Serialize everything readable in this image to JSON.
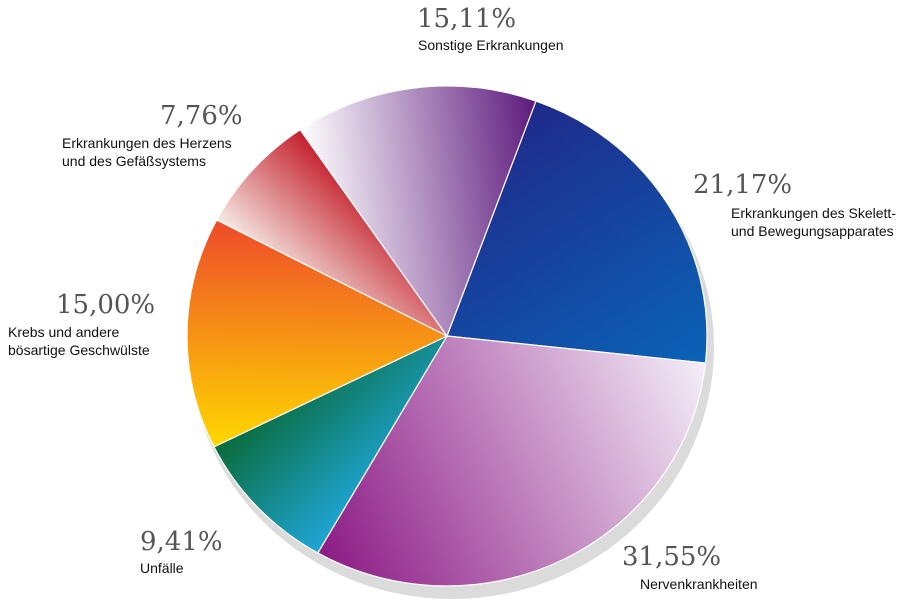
{
  "chart_data": {
    "type": "pie",
    "title": "",
    "start_angle_deg": -70,
    "slices": [
      {
        "key": "skelett",
        "label_lines": [
          "Erkrankungen des Skelett-",
          "und Bewegungsapparates"
        ],
        "value": 21.17,
        "value_label": "21,17%",
        "colors": [
          "#1f2a8a",
          "#0a63b8"
        ]
      },
      {
        "key": "nerven",
        "label_lines": [
          "Nervenkrankheiten"
        ],
        "value": 31.55,
        "value_label": "31,55%",
        "colors": [
          "#f4eef8",
          "#8c1a85"
        ]
      },
      {
        "key": "unfaelle",
        "label_lines": [
          "Unfälle"
        ],
        "value": 9.41,
        "value_label": "9,41%",
        "colors": [
          "#1fa6d9",
          "#0a6b3a"
        ]
      },
      {
        "key": "krebs",
        "label_lines": [
          "Krebs und andere",
          "bösartige Geschwülste"
        ],
        "value": 15.0,
        "value_label": "15,00%",
        "colors": [
          "#ffd800",
          "#ee4a2a"
        ]
      },
      {
        "key": "herz",
        "label_lines": [
          "Erkrankungen des Herzens",
          "und des Gefäßsystems"
        ],
        "value": 7.76,
        "value_label": "7,76%",
        "colors": [
          "#f6ebe6",
          "#c41e2a"
        ]
      },
      {
        "key": "sonstige",
        "label_lines": [
          "Sonstige Erkrankungen"
        ],
        "value": 15.11,
        "value_label": "15,11%",
        "colors": [
          "#ffffff",
          "#5d1a7d"
        ]
      }
    ]
  }
}
